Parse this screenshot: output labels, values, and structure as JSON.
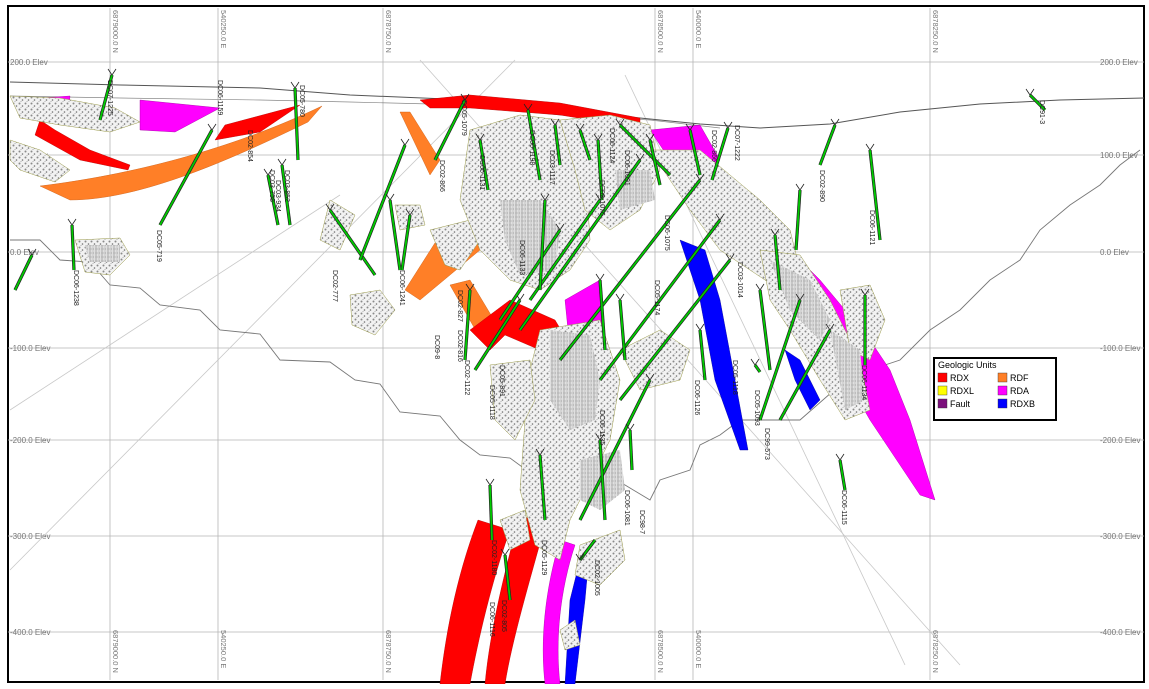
{
  "section": {
    "elevation_labels": [
      {
        "elev": 200,
        "left": "200.0 Elev",
        "right": "200.0 Elev"
      },
      {
        "elev": 100,
        "left": "100.0 Elev",
        "right": "100.0 Elev"
      },
      {
        "elev": 0,
        "left": "0.0 Elev",
        "right": "0.0 Elev"
      },
      {
        "elev": -100,
        "left": "-100.0 Elev",
        "right": "-100.0 Elev"
      },
      {
        "elev": -200,
        "left": "-200.0 Elev",
        "right": "-200.0 Elev"
      },
      {
        "elev": -300,
        "left": "-300.0 Elev",
        "right": "-300.0 Elev"
      },
      {
        "elev": -400,
        "left": "-400.0 Elev",
        "right": "-400.0 Elev"
      }
    ],
    "grid_lines": [
      {
        "top": "6879000.0 N",
        "bottom": "6879000.0 N"
      },
      {
        "top": "540250.0 E",
        "bottom": "540250.0 E"
      },
      {
        "top": "6878750.0 N",
        "bottom": "6878750.0 N"
      },
      {
        "top": "6878500.0 N",
        "bottom": "6878500.0 N"
      },
      {
        "top": "540000.0 E",
        "bottom": "540000.0 E"
      },
      {
        "top": "6878250.0 N",
        "bottom": "6878250.0 N"
      }
    ]
  },
  "drillholes": [
    "DC07-1225",
    "DC06-1159",
    "DC05-780",
    "DC03-934",
    "DC03-758",
    "DC03-852",
    "DC02-866",
    "DC05-1079",
    "DC02-854",
    "DC06-1124",
    "DC07-1222",
    "DC02-866",
    "DC06-1121",
    "DC02-890",
    "DC91-3",
    "DC05-719",
    "DC06-1238",
    "DC02-777",
    "DC06-1241",
    "DC09-8",
    "DC02-827",
    "DC06-1131",
    "DC02-816",
    "DC06-1198",
    "DC02-1122",
    "DC05-891",
    "DC06-1133",
    "DC03-1014",
    "DC05-1118",
    "DC06-1126",
    "DC99-573",
    "DC05-1093",
    "DC06-1115",
    "DC02-1180",
    "DC06-1116",
    "DC06-1135",
    "DC98-7",
    "DC05-1129",
    "DC02-805",
    "DC06-1081",
    "DC02-1005",
    "DC05-1174",
    "DC06-1075",
    "DC02-1076",
    "DC03-1117",
    "DC06-1091",
    "DC05-1118",
    "DC06-1134"
  ],
  "legend": {
    "title": "Geologic Units",
    "items": [
      {
        "label": "RDX",
        "color": "#ff0000"
      },
      {
        "label": "RDF",
        "color": "#ff7f27"
      },
      {
        "label": "RDXL",
        "color": "#ffff00"
      },
      {
        "label": "RDA",
        "color": "#ff00ff"
      },
      {
        "label": "Fault",
        "color": "#7b0f7b"
      },
      {
        "label": "RDXB",
        "color": "#0000ff"
      }
    ]
  },
  "colors": {
    "drillhole": "#00cc00",
    "gridline": "#999999",
    "topography": "#555555",
    "breccia": "#b0b0b0"
  }
}
